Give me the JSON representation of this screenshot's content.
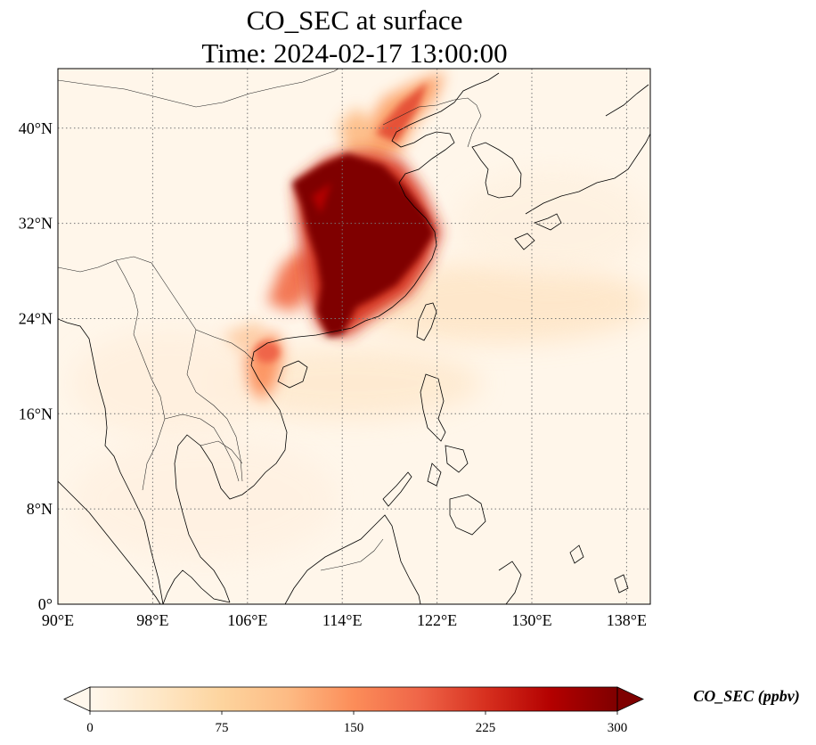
{
  "title": {
    "line1": "CO_SEC at surface",
    "line2": "Time: 2024-02-17 13:00:00"
  },
  "map": {
    "lon_range": [
      90,
      140
    ],
    "lat_range": [
      0,
      45
    ],
    "lon_ticks": [
      {
        "value": 90,
        "label": "90°E"
      },
      {
        "value": 98,
        "label": "98°E"
      },
      {
        "value": 106,
        "label": "106°E"
      },
      {
        "value": 114,
        "label": "114°E"
      },
      {
        "value": 122,
        "label": "122°E"
      },
      {
        "value": 130,
        "label": "130°E"
      },
      {
        "value": 138,
        "label": "138°E"
      }
    ],
    "lat_ticks": [
      {
        "value": 0,
        "label": "0°"
      },
      {
        "value": 8,
        "label": "8°N"
      },
      {
        "value": 16,
        "label": "16°N"
      },
      {
        "value": 24,
        "label": "24°N"
      },
      {
        "value": 32,
        "label": "32°N"
      },
      {
        "value": 40,
        "label": "40°N"
      }
    ],
    "gridlines": true
  },
  "colorbar": {
    "title": "CO_SEC (ppbv)",
    "min": 0,
    "max": 300,
    "extend": "both",
    "colormap": "OrRd",
    "ticks": [
      {
        "value": 0,
        "label": "0"
      },
      {
        "value": 75,
        "label": "75"
      },
      {
        "value": 150,
        "label": "150"
      },
      {
        "value": 225,
        "label": "225"
      },
      {
        "value": 300,
        "label": "300"
      }
    ],
    "colors": [
      "#fff7ec",
      "#fee8c8",
      "#fdd49e",
      "#fdbb84",
      "#fc8d59",
      "#ef6548",
      "#d7301f",
      "#b30000",
      "#7f0000"
    ]
  }
}
